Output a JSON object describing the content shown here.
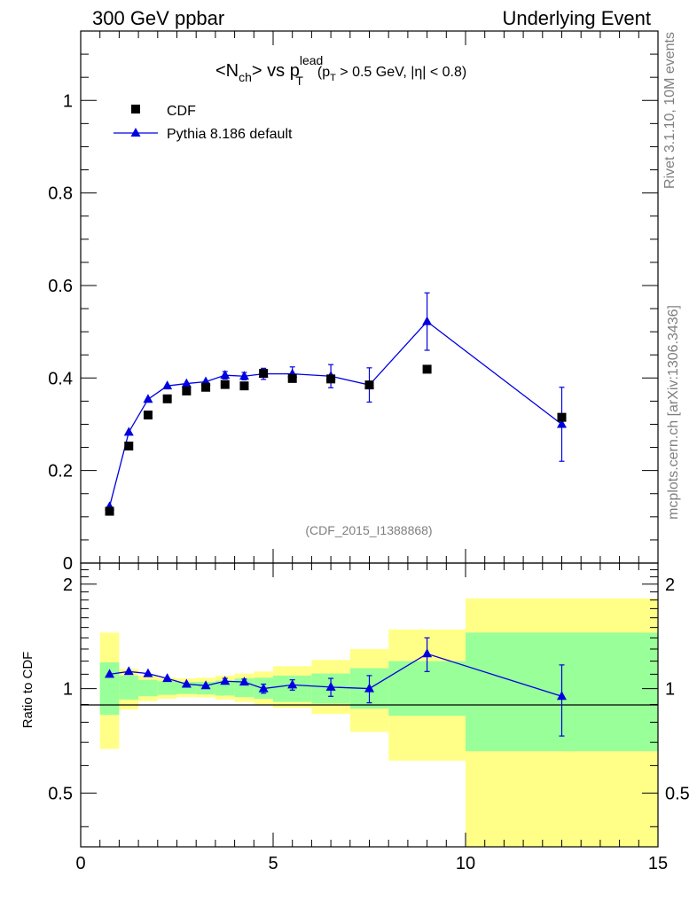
{
  "header": {
    "left": "300 GeV ppbar",
    "right": "Underlying Event"
  },
  "side": {
    "top": "Rivet 3.1.10,  10M events",
    "bottom": "mcplots.cern.ch [arXiv:1306.3436]"
  },
  "chart_data": [
    {
      "type": "scatter",
      "title_parts": {
        "main": "<N",
        "main_sub": "ch",
        "mid": "> vs p",
        "sup": "lead",
        "sub": "T",
        "cut_open": "(p",
        "cut_sub": "T",
        "cut_rest": " > 0.5 GeV, |",
        "eta": "η",
        "cut_close": "| < 0.8)"
      },
      "xlim": [
        0,
        15
      ],
      "ylim": [
        0,
        1.15
      ],
      "yticks": [
        "0",
        "0.2",
        "0.4",
        "0.6",
        "0.8",
        "1"
      ],
      "ytick_values": [
        0,
        0.2,
        0.4,
        0.6,
        0.8,
        1.0
      ],
      "watermark": "(CDF_2015_I1388868)",
      "legend": [
        {
          "label": "CDF",
          "marker": "square",
          "color": "#000000"
        },
        {
          "label": "Pythia 8.186 default",
          "marker": "triangle",
          "color": "#0000e0"
        }
      ],
      "series": [
        {
          "name": "CDF",
          "x": [
            0.75,
            1.25,
            1.75,
            2.25,
            2.75,
            3.25,
            3.75,
            4.25,
            4.75,
            5.5,
            6.5,
            7.5,
            9.0,
            12.5
          ],
          "y": [
            0.112,
            0.253,
            0.32,
            0.355,
            0.372,
            0.38,
            0.386,
            0.383,
            0.41,
            0.399,
            0.398,
            0.385,
            0.419,
            0.315
          ]
        },
        {
          "name": "Pythia 8.186 default",
          "x": [
            0.75,
            1.25,
            1.75,
            2.25,
            2.75,
            3.25,
            3.75,
            4.25,
            4.75,
            5.5,
            6.5,
            7.5,
            9.0,
            12.5
          ],
          "y": [
            0.122,
            0.283,
            0.354,
            0.383,
            0.388,
            0.392,
            0.406,
            0.404,
            0.409,
            0.409,
            0.404,
            0.385,
            0.522,
            0.3
          ],
          "err": [
            0.004,
            0.005,
            0.005,
            0.005,
            0.006,
            0.006,
            0.008,
            0.008,
            0.012,
            0.015,
            0.025,
            0.037,
            0.062,
            0.08
          ]
        }
      ]
    },
    {
      "type": "scatter",
      "ylabel": "Ratio to CDF",
      "xlim": [
        0,
        15
      ],
      "ylim": [
        0.35,
        2.3
      ],
      "yscale": "log",
      "yticks": [
        "0.5",
        "1",
        "2"
      ],
      "ytick_values": [
        0.5,
        1,
        2
      ],
      "xticks": [
        "0",
        "5",
        "10",
        "15"
      ],
      "xtick_values": [
        0,
        5,
        10,
        15
      ],
      "bands": {
        "edges": [
          0.5,
          1.0,
          1.5,
          2.0,
          2.5,
          3.0,
          3.5,
          4.0,
          4.5,
          5.0,
          6.0,
          7.0,
          8.0,
          10.0,
          15.0
        ],
        "inner": [
          [
            0.84,
            1.19
          ],
          [
            0.93,
            1.09
          ],
          [
            0.95,
            1.06
          ],
          [
            0.96,
            1.05
          ],
          [
            0.965,
            1.045
          ],
          [
            0.962,
            1.046
          ],
          [
            0.955,
            1.055
          ],
          [
            0.945,
            1.07
          ],
          [
            0.935,
            1.075
          ],
          [
            0.915,
            1.09
          ],
          [
            0.905,
            1.105
          ],
          [
            0.875,
            1.145
          ],
          [
            0.835,
            1.2
          ],
          [
            0.66,
            1.45
          ]
        ],
        "outer": [
          [
            0.67,
            1.45
          ],
          [
            0.87,
            1.14
          ],
          [
            0.92,
            1.09
          ],
          [
            0.935,
            1.075
          ],
          [
            0.945,
            1.07
          ],
          [
            0.943,
            1.075
          ],
          [
            0.93,
            1.09
          ],
          [
            0.915,
            1.105
          ],
          [
            0.9,
            1.12
          ],
          [
            0.88,
            1.16
          ],
          [
            0.845,
            1.21
          ],
          [
            0.75,
            1.3
          ],
          [
            0.62,
            1.48
          ],
          [
            0.35,
            1.82
          ]
        ],
        "inner_color": "#99ff99",
        "outer_color": "#ffff88"
      },
      "series": [
        {
          "name": "Pythia 8.186 default",
          "x": [
            0.75,
            1.25,
            1.75,
            2.25,
            2.75,
            3.25,
            3.75,
            4.25,
            4.75,
            5.5,
            6.5,
            7.5,
            9.0,
            12.5
          ],
          "y": [
            1.1,
            1.12,
            1.105,
            1.07,
            1.03,
            1.02,
            1.05,
            1.045,
            1.0,
            1.025,
            1.01,
            1.0,
            1.26,
            0.95
          ],
          "err": [
            0.01,
            0.01,
            0.01,
            0.012,
            0.015,
            0.015,
            0.02,
            0.02,
            0.03,
            0.035,
            0.06,
            0.09,
            0.14,
            0.22
          ]
        }
      ]
    }
  ]
}
